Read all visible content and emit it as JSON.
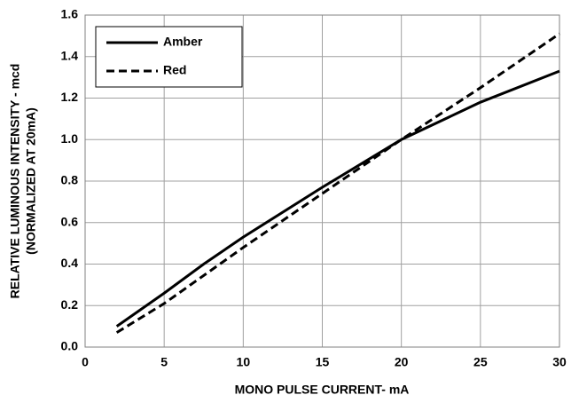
{
  "chart_data": {
    "type": "line",
    "xlabel": "MONO PULSE CURRENT- mA",
    "ylabel": [
      "RELATIVE LUMINOUS INTENSITY - mcd",
      "(NORMALIZED AT 20mA)"
    ],
    "xlim": [
      0,
      30
    ],
    "xticks": [
      0,
      5,
      10,
      15,
      20,
      25,
      30
    ],
    "ylim": [
      0,
      1.6
    ],
    "yticks": [
      {
        "value": 0,
        "label": "0.0"
      },
      0.2,
      0.4,
      0.6,
      0.8,
      {
        "value": 1,
        "label": "1.0"
      },
      1.2,
      1.4,
      1.6
    ],
    "grid": true,
    "legend": "upper left",
    "series": [
      {
        "name": "Amber",
        "color": "#000000",
        "line_style": "solid",
        "x": [
          2,
          5,
          7.5,
          10,
          15,
          20,
          25,
          30
        ],
        "values": [
          0.1,
          0.26,
          0.4,
          0.53,
          0.77,
          1.0,
          1.18,
          1.33
        ]
      },
      {
        "name": "Red",
        "color": "#000000",
        "line_style": "dashed",
        "x": [
          2,
          5,
          10,
          15,
          20,
          25,
          30
        ],
        "values": [
          0.07,
          0.21,
          0.48,
          0.74,
          1.0,
          1.25,
          1.51
        ]
      }
    ]
  }
}
